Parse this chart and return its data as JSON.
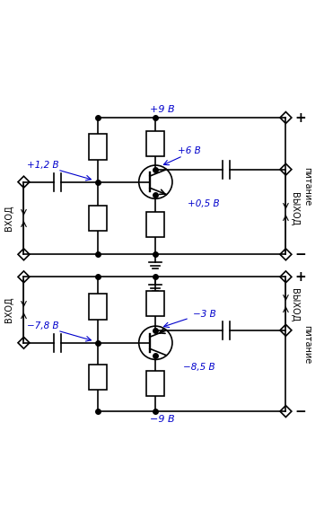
{
  "fig_width": 3.61,
  "fig_height": 5.88,
  "dpi": 100,
  "bg_color": "#ffffff",
  "line_color": "#000000",
  "blue_color": "#0000cc",
  "circuit1": {
    "v_top": "+9 В",
    "v_base": "+1,2 В",
    "v_collector": "+6 В",
    "v_emitter": "+0,5 В"
  },
  "circuit2": {
    "v_bot": "-9 В",
    "v_base": "-7,8 В",
    "v_collector": "-3 В",
    "v_emitter": "-8,5 В"
  }
}
